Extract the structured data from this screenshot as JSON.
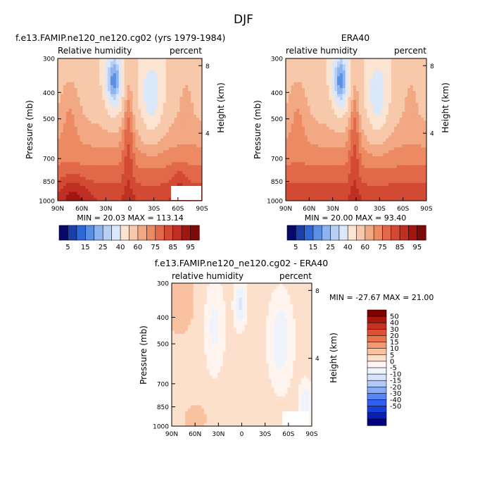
{
  "main_title": "DJF",
  "colors": {
    "seq": [
      "#08306b",
      "#08519c",
      "#2171b5",
      "#4292c6",
      "#6baed6",
      "#9ecae1",
      "#c6dbef",
      "#deebf7",
      "#fff5eb",
      "#fee6ce",
      "#fdd0a2",
      "#fdae6b",
      "#fd8d3c",
      "#f16913",
      "#d94801",
      "#a63603",
      "#7f2704"
    ],
    "rh": [
      "#08086b",
      "#1a3fa8",
      "#2f67d6",
      "#5b8fe4",
      "#8db4ee",
      "#b7cff4",
      "#dbe7fb",
      "#fbe4d2",
      "#f7c8aa",
      "#f1a883",
      "#ec8a64",
      "#e2684a",
      "#d24a34",
      "#bf2f23",
      "#a21612",
      "#7d0a0a"
    ],
    "diff": [
      "#000080",
      "#0a1fb0",
      "#1840d8",
      "#2f5fef",
      "#5a85f2",
      "#89aaf4",
      "#b3c9f7",
      "#d6e3fb",
      "#eef3fc",
      "#fff4ee",
      "#fde0cc",
      "#f9c1a0",
      "#f29b73",
      "#ea7450",
      "#df4f33",
      "#c8311f",
      "#a8170e",
      "#800000"
    ]
  },
  "chart_data": [
    {
      "type": "contour",
      "panel": "model",
      "title": "f.e13.FAMIP.ne120_ne120.cg02 (yrs 1979-1984)",
      "left_label": "Relative humidity",
      "right_label": "percent",
      "ylabel": "Pressure (mb)",
      "ylabel_right": "Height (km)",
      "x_ticks": [
        "90N",
        "60N",
        "30N",
        "0",
        "30S",
        "60S",
        "90S"
      ],
      "y_ticks": [
        "300",
        "400",
        "500",
        "700",
        "850",
        "1000"
      ],
      "y_ticks_right": [
        "8",
        "4"
      ],
      "stats": "MIN = 20.03   MAX = 113.14",
      "min": 20.03,
      "max": 113.14,
      "colorbar_levels": [
        "5",
        "15",
        "25",
        "40",
        "60",
        "75",
        "85",
        "95"
      ],
      "colorbar_orientation": "horizontal"
    },
    {
      "type": "contour",
      "panel": "obs",
      "title": "ERA40",
      "left_label": "relative humidity",
      "right_label": "percent",
      "ylabel": "Pressure (mb)",
      "ylabel_right": "Height (km)",
      "x_ticks": [
        "90N",
        "60N",
        "30N",
        "0",
        "30S",
        "60S",
        "90S"
      ],
      "y_ticks": [
        "300",
        "400",
        "500",
        "700",
        "850",
        "1000"
      ],
      "y_ticks_right": [
        "8",
        "4"
      ],
      "stats": "MIN = 20.00   MAX = 93.40",
      "min": 20.0,
      "max": 93.4,
      "colorbar_levels": [
        "5",
        "15",
        "25",
        "40",
        "60",
        "75",
        "85",
        "95"
      ],
      "colorbar_orientation": "horizontal"
    },
    {
      "type": "contour",
      "panel": "difference",
      "title": "f.e13.FAMIP.ne120_ne120.cg02 - ERA40",
      "left_label": "relative humidity",
      "right_label": "percent",
      "ylabel": "Pressure (mb)",
      "ylabel_right": "Height (km)",
      "x_ticks": [
        "90N",
        "60N",
        "30N",
        "0",
        "30S",
        "60S",
        "90S"
      ],
      "y_ticks": [
        "300",
        "400",
        "500",
        "700",
        "850",
        "1000"
      ],
      "y_ticks_right": [
        "8",
        "4"
      ],
      "stats": "MIN = -27.67   MAX =  21.00",
      "min": -27.67,
      "max": 21.0,
      "colorbar_levels": [
        "50",
        "40",
        "30",
        "20",
        "15",
        "10",
        "5",
        "0",
        "-5",
        "-10",
        "-15",
        "-20",
        "-30",
        "-40",
        "-50"
      ],
      "colorbar_orientation": "vertical"
    }
  ]
}
